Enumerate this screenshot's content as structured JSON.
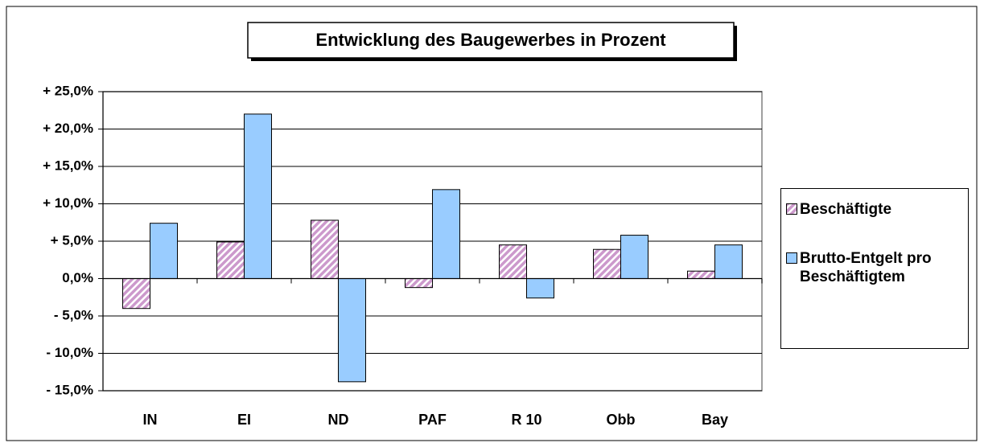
{
  "chart_data": {
    "type": "bar",
    "title": "Entwicklung des Baugewerbes in Prozent",
    "categories": [
      "IN",
      "EI",
      "ND",
      "PAF",
      "R 10",
      "Obb",
      "Bay"
    ],
    "series": [
      {
        "name": "Beschäftigte",
        "color": "#cc99cc",
        "pattern": "hatch",
        "values": [
          -4.0,
          4.9,
          7.8,
          -1.2,
          4.5,
          3.9,
          1.0
        ]
      },
      {
        "name": "Brutto-Entgelt pro Beschäftigtem",
        "color": "#99ccff",
        "values": [
          7.4,
          22.0,
          -13.8,
          11.9,
          -2.6,
          5.8,
          4.5
        ]
      }
    ],
    "ylim": [
      -15,
      25
    ],
    "yticks": [
      {
        "value": 25,
        "label": "+ 25,0%"
      },
      {
        "value": 20,
        "label": "+ 20,0%"
      },
      {
        "value": 15,
        "label": "+ 15,0%"
      },
      {
        "value": 10,
        "label": "+ 10,0%"
      },
      {
        "value": 5,
        "label": "+ 5,0%"
      },
      {
        "value": 0,
        "label": "0,0%"
      },
      {
        "value": -5,
        "label": "- 5,0%"
      },
      {
        "value": -10,
        "label": "- 10,0%"
      },
      {
        "value": -15,
        "label": "- 15,0%"
      }
    ],
    "grid": true,
    "legend": "right"
  }
}
